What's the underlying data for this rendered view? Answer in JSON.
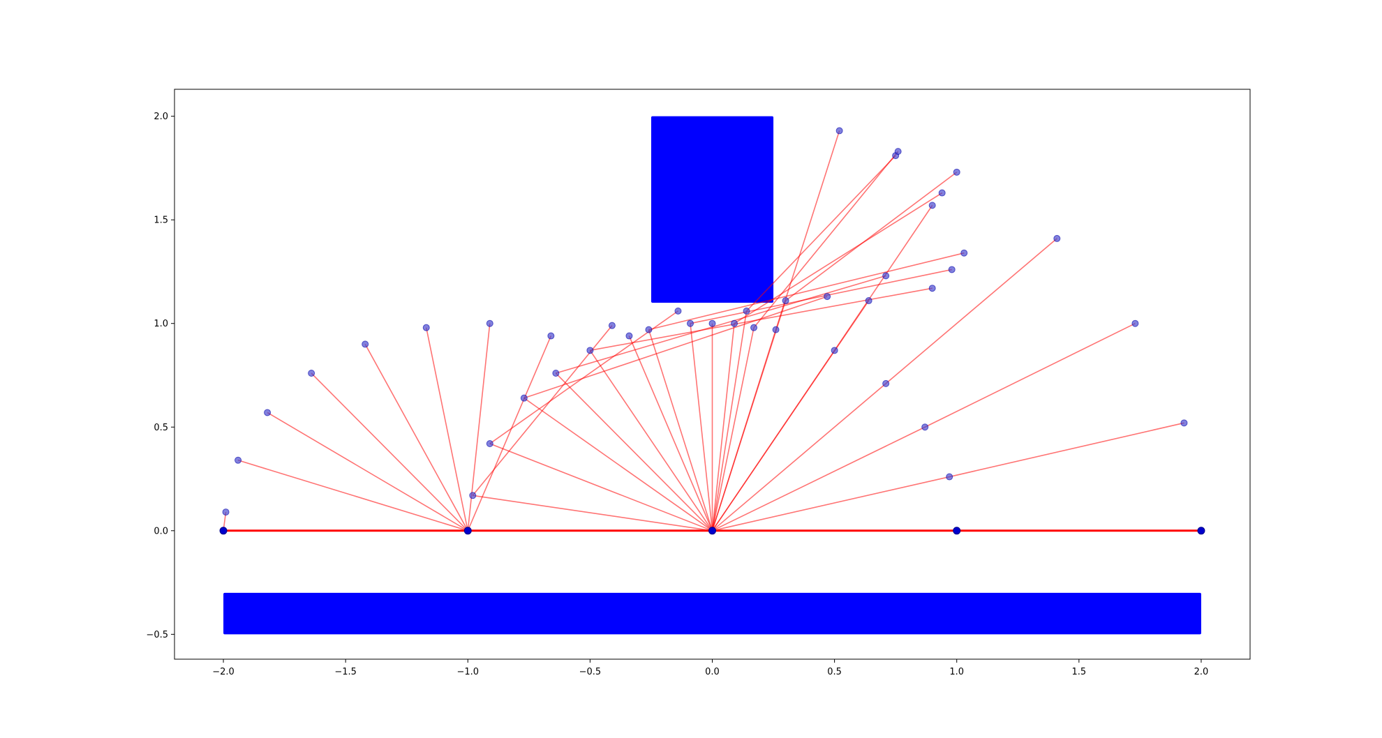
{
  "chart_data": {
    "type": "scatter",
    "title": "",
    "xlabel": "",
    "ylabel": "",
    "xlim": [
      -2.2,
      2.2
    ],
    "ylim": [
      -0.62,
      2.13
    ],
    "x_ticks": [
      -2.0,
      -1.5,
      -1.0,
      -0.5,
      0.0,
      0.5,
      1.0,
      1.5,
      2.0
    ],
    "x_tick_labels": [
      "−2.0",
      "−1.5",
      "−1.0",
      "−0.5",
      "0.0",
      "0.5",
      "1.0",
      "1.5",
      "2.0"
    ],
    "y_ticks": [
      -0.5,
      0.0,
      0.5,
      1.0,
      1.5,
      2.0
    ],
    "y_tick_labels": [
      "−0.5",
      "0.0",
      "0.5",
      "1.0",
      "1.5",
      "2.0"
    ],
    "grid": false,
    "colors": {
      "obstacle": "#0000ff",
      "edge": "#ff0000",
      "node": "#3d3dcc",
      "node_edge": "#0000aa"
    },
    "obstacles": [
      {
        "x": [
          -0.25,
          0.25
        ],
        "y": [
          1.1,
          2.0
        ]
      },
      {
        "x": [
          -2.0,
          2.0
        ],
        "y": [
          -0.5,
          -0.3
        ]
      }
    ],
    "base_nodes": [
      [
        -2.0,
        0.0
      ],
      [
        -1.0,
        0.0
      ],
      [
        0.0,
        0.0
      ],
      [
        1.0,
        0.0
      ],
      [
        2.0,
        0.0
      ]
    ],
    "base_segments": [
      [
        -2.0,
        0.0,
        2.0,
        0.0
      ]
    ],
    "edges": [
      [
        -2.0,
        0.0,
        -1.99,
        0.09
      ],
      [
        -1.0,
        0.0,
        -1.94,
        0.34
      ],
      [
        -1.0,
        0.0,
        -1.82,
        0.57
      ],
      [
        -1.0,
        0.0,
        -1.64,
        0.76
      ],
      [
        -1.0,
        0.0,
        -1.42,
        0.9
      ],
      [
        -1.0,
        0.0,
        -1.17,
        0.98
      ],
      [
        -1.0,
        0.0,
        -0.91,
        1.0
      ],
      [
        -1.0,
        0.0,
        -0.66,
        0.94
      ],
      [
        0.0,
        0.0,
        -0.98,
        0.17
      ],
      [
        -0.98,
        0.17,
        -0.41,
        0.99
      ],
      [
        0.0,
        0.0,
        -0.91,
        0.42
      ],
      [
        -0.91,
        0.42,
        -0.14,
        1.06
      ],
      [
        0.0,
        0.0,
        -0.77,
        0.64
      ],
      [
        -0.77,
        0.64,
        0.47,
        1.13
      ],
      [
        0.0,
        0.0,
        -0.64,
        0.76
      ],
      [
        -0.64,
        0.76,
        0.71,
        1.23
      ],
      [
        0.0,
        0.0,
        -0.5,
        0.87
      ],
      [
        -0.5,
        0.87,
        0.9,
        1.17
      ],
      [
        0.0,
        0.0,
        -0.34,
        0.94
      ],
      [
        0.0,
        0.0,
        -0.26,
        0.97
      ],
      [
        -0.26,
        0.97,
        1.03,
        1.34
      ],
      [
        0.0,
        0.0,
        -0.09,
        1.0
      ],
      [
        -0.09,
        1.0,
        0.98,
        1.26
      ],
      [
        0.0,
        0.0,
        0.0,
        1.0
      ],
      [
        0.0,
        0.0,
        0.64,
        1.11
      ],
      [
        0.0,
        0.0,
        0.09,
        1.0
      ],
      [
        0.09,
        1.0,
        0.94,
        1.63
      ],
      [
        0.0,
        0.0,
        0.17,
        0.98
      ],
      [
        0.17,
        0.98,
        0.76,
        1.83
      ],
      [
        0.0,
        0.0,
        0.26,
        0.97
      ],
      [
        0.26,
        0.97,
        0.52,
        1.93
      ],
      [
        0.0,
        0.0,
        0.3,
        1.11
      ],
      [
        0.3,
        1.11,
        1.0,
        1.73
      ],
      [
        0.0,
        0.0,
        0.5,
        0.87
      ],
      [
        0.5,
        0.87,
        0.9,
        1.57
      ],
      [
        0.0,
        0.0,
        0.71,
        0.71
      ],
      [
        0.71,
        0.71,
        1.41,
        1.41
      ],
      [
        0.0,
        0.0,
        0.87,
        0.5
      ],
      [
        0.87,
        0.5,
        1.73,
        1.0
      ],
      [
        0.0,
        0.0,
        0.97,
        0.26
      ],
      [
        0.97,
        0.26,
        1.93,
        0.52
      ],
      [
        0.0,
        0.0,
        0.14,
        1.06
      ],
      [
        0.14,
        1.06,
        0.75,
        1.81
      ]
    ],
    "nodes": [
      [
        -1.99,
        0.09
      ],
      [
        -1.94,
        0.34
      ],
      [
        -1.82,
        0.57
      ],
      [
        -1.64,
        0.76
      ],
      [
        -1.42,
        0.9
      ],
      [
        -1.17,
        0.98
      ],
      [
        -0.91,
        1.0
      ],
      [
        -0.66,
        0.94
      ],
      [
        -0.98,
        0.17
      ],
      [
        -0.91,
        0.42
      ],
      [
        -0.77,
        0.64
      ],
      [
        -0.64,
        0.76
      ],
      [
        -0.5,
        0.87
      ],
      [
        -0.41,
        0.99
      ],
      [
        -0.34,
        0.94
      ],
      [
        -0.26,
        0.97
      ],
      [
        -0.14,
        1.06
      ],
      [
        -0.09,
        1.0
      ],
      [
        0.0,
        1.0
      ],
      [
        0.09,
        1.0
      ],
      [
        0.14,
        1.06
      ],
      [
        0.17,
        0.98
      ],
      [
        0.26,
        0.97
      ],
      [
        0.3,
        1.11
      ],
      [
        0.47,
        1.13
      ],
      [
        0.52,
        1.93
      ],
      [
        0.64,
        1.11
      ],
      [
        0.5,
        0.87
      ],
      [
        0.71,
        1.23
      ],
      [
        0.71,
        0.71
      ],
      [
        0.75,
        1.81
      ],
      [
        0.76,
        1.83
      ],
      [
        0.87,
        0.5
      ],
      [
        0.9,
        1.57
      ],
      [
        0.9,
        1.17
      ],
      [
        0.94,
        1.63
      ],
      [
        0.97,
        0.26
      ],
      [
        0.98,
        1.26
      ],
      [
        1.0,
        1.73
      ],
      [
        1.03,
        1.34
      ],
      [
        1.41,
        1.41
      ],
      [
        1.73,
        1.0
      ],
      [
        1.93,
        0.52
      ]
    ]
  }
}
